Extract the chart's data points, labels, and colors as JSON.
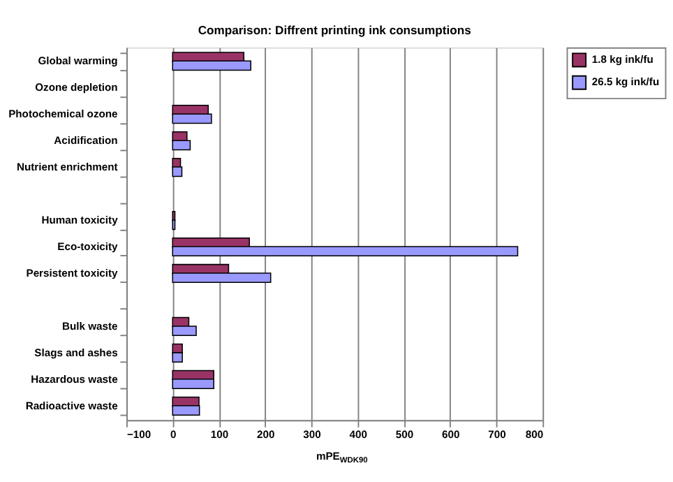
{
  "chart_data": {
    "type": "bar",
    "orientation": "horizontal",
    "title": "Comparison: Diffrent printing ink consumptions",
    "xlabel": "mPE$_{WDK90}$",
    "categories": [
      "Global warming",
      "Ozone depletion",
      "Photochemical ozone",
      "Acidification",
      "Nutrient enrichment",
      null,
      "Human toxicity",
      "Eco-toxicity",
      "Persistent toxicity",
      null,
      "Bulk waste",
      "Slags and ashes",
      "Hazardous waste",
      "Radioactive waste"
    ],
    "series": [
      {
        "name": "1.8 kg ink/fu",
        "color": "#993366",
        "values": [
          154,
          null,
          77,
          31,
          17,
          null,
          5,
          166,
          121,
          null,
          35,
          21,
          89,
          57
        ]
      },
      {
        "name": "26.5 kg ink/fu",
        "color": "#9999ff",
        "values": [
          169,
          null,
          84,
          38,
          20,
          null,
          5,
          746,
          212,
          null,
          51,
          21,
          89,
          58
        ]
      }
    ],
    "xlim": [
      -100,
      800
    ],
    "xticks": [
      -100,
      0,
      100,
      200,
      300,
      400,
      500,
      600,
      700,
      800
    ],
    "grid": "x",
    "legend": "right"
  }
}
